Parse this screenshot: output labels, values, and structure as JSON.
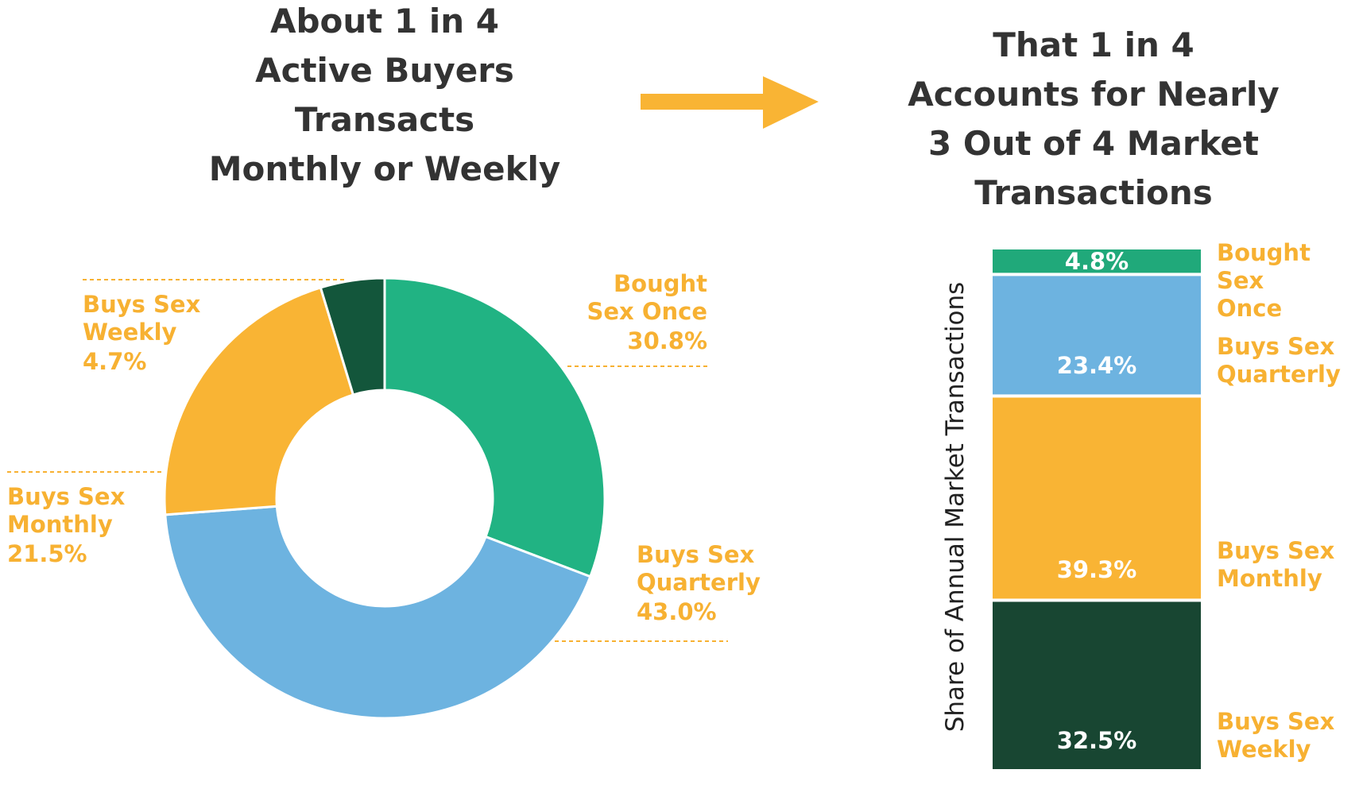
{
  "chart_data": [
    {
      "type": "donut",
      "title": "About 1 in 4\nActive Buyers\nTransacts\nMonthly or Weekly",
      "categories": [
        "Bought\nSex Once",
        "Buys Sex\nQuarterly",
        "Buys Sex\nMonthly",
        "Buys Sex\nWeekly"
      ],
      "values": [
        30.8,
        43.0,
        21.5,
        4.7
      ],
      "value_labels": [
        "30.8%",
        "43.0%",
        "21.5%",
        "4.7%"
      ],
      "colors": [
        "#21b383",
        "#6db3e0",
        "#f9b434",
        "#13563b"
      ]
    },
    {
      "type": "bar",
      "stacked": true,
      "title": "That 1 in 4\nAccounts for Nearly\n3 Out of 4 Market\nTransactions",
      "ylabel": "Share of Annual Market Transactions",
      "ylim": [
        0,
        100
      ],
      "series": [
        {
          "name": "Bought Sex\nOnce",
          "color": "#20a97a",
          "values": [
            4.8
          ],
          "value_labels": [
            "4.8%"
          ]
        },
        {
          "name": "Buys Sex\nQuarterly",
          "color": "#6db3e0",
          "values": [
            23.4
          ],
          "value_labels": [
            "23.4%"
          ]
        },
        {
          "name": "Buys Sex\nMonthly",
          "color": "#f9b434",
          "values": [
            39.3
          ],
          "value_labels": [
            "39.3%"
          ]
        },
        {
          "name": "Buys Sex\nWeekly",
          "color": "#184632",
          "values": [
            32.5
          ],
          "value_labels": [
            "32.5%"
          ]
        }
      ]
    }
  ]
}
